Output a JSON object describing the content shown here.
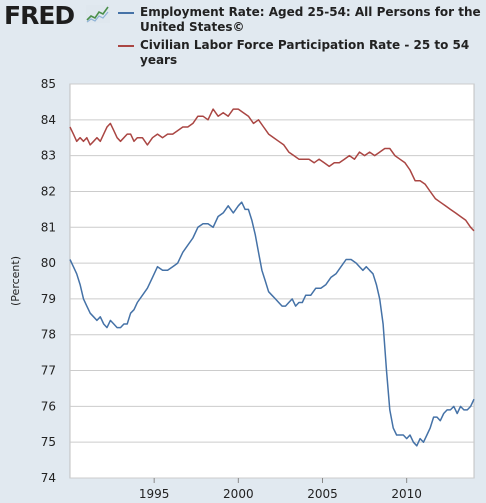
{
  "header": {
    "logo": "FRED",
    "logo_icon": "sparkline-icon"
  },
  "colors": {
    "employment": "#4572a7",
    "participation": "#aa4643",
    "plot_bg": "#ffffff",
    "page_bg": "#e1e9f0",
    "grid": "#cccccc"
  },
  "chart_data": {
    "type": "line",
    "title": "",
    "xlabel": "",
    "ylabel": "(Percent)",
    "xlim": [
      1990.0,
      2014.0
    ],
    "ylim": [
      74,
      85
    ],
    "yticks": [
      74,
      75,
      76,
      77,
      78,
      79,
      80,
      81,
      82,
      83,
      84,
      85
    ],
    "xticks": [
      1995,
      2000,
      2005,
      2010
    ],
    "grid": "horizontal",
    "legend": "top",
    "series": [
      {
        "name": "Employment Rate: Aged 25-54: All Persons for the United States©",
        "color": "#4572a7",
        "x": [
          1990.0,
          1990.2,
          1990.4,
          1990.6,
          1990.8,
          1991.0,
          1991.2,
          1991.4,
          1991.6,
          1991.8,
          1992.0,
          1992.2,
          1992.4,
          1992.6,
          1992.8,
          1993.0,
          1993.2,
          1993.4,
          1993.6,
          1993.8,
          1994.0,
          1994.3,
          1994.6,
          1994.9,
          1995.2,
          1995.5,
          1995.8,
          1996.1,
          1996.4,
          1996.7,
          1997.0,
          1997.3,
          1997.6,
          1997.9,
          1998.2,
          1998.5,
          1998.8,
          1999.1,
          1999.4,
          1999.7,
          2000.0,
          2000.2,
          2000.4,
          2000.6,
          2000.8,
          2001.0,
          2001.2,
          2001.4,
          2001.6,
          2001.8,
          2002.0,
          2002.2,
          2002.4,
          2002.6,
          2002.8,
          2003.0,
          2003.2,
          2003.4,
          2003.6,
          2003.8,
          2004.0,
          2004.3,
          2004.6,
          2004.9,
          2005.2,
          2005.5,
          2005.8,
          2006.1,
          2006.4,
          2006.7,
          2007.0,
          2007.2,
          2007.4,
          2007.6,
          2007.8,
          2008.0,
          2008.2,
          2008.4,
          2008.6,
          2008.8,
          2009.0,
          2009.2,
          2009.4,
          2009.6,
          2009.8,
          2010.0,
          2010.2,
          2010.4,
          2010.6,
          2010.8,
          2011.0,
          2011.2,
          2011.4,
          2011.6,
          2011.8,
          2012.0,
          2012.2,
          2012.4,
          2012.6,
          2012.8,
          2013.0,
          2013.2,
          2013.4,
          2013.6,
          2013.8,
          2014.0
        ],
        "values": [
          80.1,
          79.9,
          79.7,
          79.4,
          79.0,
          78.8,
          78.6,
          78.5,
          78.4,
          78.5,
          78.3,
          78.2,
          78.4,
          78.3,
          78.2,
          78.2,
          78.3,
          78.3,
          78.6,
          78.7,
          78.9,
          79.1,
          79.3,
          79.6,
          79.9,
          79.8,
          79.8,
          79.9,
          80.0,
          80.3,
          80.5,
          80.7,
          81.0,
          81.1,
          81.1,
          81.0,
          81.3,
          81.4,
          81.6,
          81.4,
          81.6,
          81.7,
          81.5,
          81.5,
          81.2,
          80.8,
          80.3,
          79.8,
          79.5,
          79.2,
          79.1,
          79.0,
          78.9,
          78.8,
          78.8,
          78.9,
          79.0,
          78.8,
          78.9,
          78.9,
          79.1,
          79.1,
          79.3,
          79.3,
          79.4,
          79.6,
          79.7,
          79.9,
          80.1,
          80.1,
          80.0,
          79.9,
          79.8,
          79.9,
          79.8,
          79.7,
          79.4,
          79.0,
          78.3,
          77.0,
          75.9,
          75.4,
          75.2,
          75.2,
          75.2,
          75.1,
          75.2,
          75.0,
          74.9,
          75.1,
          75.0,
          75.2,
          75.4,
          75.7,
          75.7,
          75.6,
          75.8,
          75.9,
          75.9,
          76.0,
          75.8,
          76.0,
          75.9,
          75.9,
          76.0,
          76.2
        ]
      },
      {
        "name": "Civilian Labor Force Participation Rate - 25 to 54 years",
        "color": "#aa4643",
        "x": [
          1990.0,
          1990.2,
          1990.4,
          1990.6,
          1990.8,
          1991.0,
          1991.2,
          1991.4,
          1991.6,
          1991.8,
          1992.0,
          1992.2,
          1992.4,
          1992.6,
          1992.8,
          1993.0,
          1993.2,
          1993.4,
          1993.6,
          1993.8,
          1994.0,
          1994.3,
          1994.6,
          1994.9,
          1995.2,
          1995.5,
          1995.8,
          1996.1,
          1996.4,
          1996.7,
          1997.0,
          1997.3,
          1997.6,
          1997.9,
          1998.2,
          1998.5,
          1998.8,
          1999.1,
          1999.4,
          1999.7,
          2000.0,
          2000.3,
          2000.6,
          2000.9,
          2001.2,
          2001.5,
          2001.8,
          2002.1,
          2002.4,
          2002.7,
          2003.0,
          2003.3,
          2003.6,
          2003.9,
          2004.2,
          2004.5,
          2004.8,
          2005.1,
          2005.4,
          2005.7,
          2006.0,
          2006.3,
          2006.6,
          2006.9,
          2007.2,
          2007.5,
          2007.8,
          2008.1,
          2008.4,
          2008.7,
          2009.0,
          2009.3,
          2009.6,
          2009.9,
          2010.2,
          2010.5,
          2010.8,
          2011.1,
          2011.4,
          2011.7,
          2012.0,
          2012.3,
          2012.6,
          2012.9,
          2013.2,
          2013.5,
          2013.8,
          2014.0
        ],
        "values": [
          83.8,
          83.6,
          83.4,
          83.5,
          83.4,
          83.5,
          83.3,
          83.4,
          83.5,
          83.4,
          83.6,
          83.8,
          83.9,
          83.7,
          83.5,
          83.4,
          83.5,
          83.6,
          83.6,
          83.4,
          83.5,
          83.5,
          83.3,
          83.5,
          83.6,
          83.5,
          83.6,
          83.6,
          83.7,
          83.8,
          83.8,
          83.9,
          84.1,
          84.1,
          84.0,
          84.3,
          84.1,
          84.2,
          84.1,
          84.3,
          84.3,
          84.2,
          84.1,
          83.9,
          84.0,
          83.8,
          83.6,
          83.5,
          83.4,
          83.3,
          83.1,
          83.0,
          82.9,
          82.9,
          82.9,
          82.8,
          82.9,
          82.8,
          82.7,
          82.8,
          82.8,
          82.9,
          83.0,
          82.9,
          83.1,
          83.0,
          83.1,
          83.0,
          83.1,
          83.2,
          83.2,
          83.0,
          82.9,
          82.8,
          82.6,
          82.3,
          82.3,
          82.2,
          82.0,
          81.8,
          81.7,
          81.6,
          81.5,
          81.4,
          81.3,
          81.2,
          81.0,
          80.9
        ]
      }
    ]
  }
}
